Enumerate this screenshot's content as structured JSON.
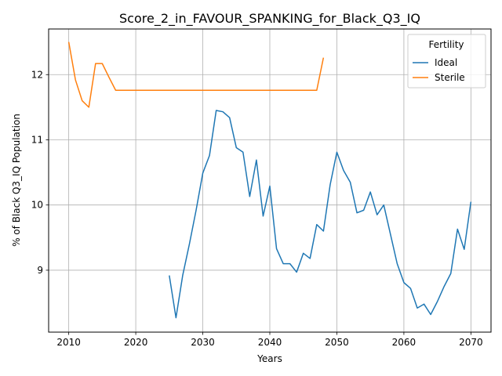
{
  "chart_data": {
    "type": "line",
    "title": "Score_2_in_FAVOUR_SPANKING_for_Black_Q3_IQ",
    "xlabel": "Years",
    "ylabel": "% of Black Q3_IQ Population",
    "xlim": [
      2007,
      2073
    ],
    "ylim": [
      8.05,
      12.7
    ],
    "xticks": [
      2010,
      2020,
      2030,
      2040,
      2050,
      2060,
      2070
    ],
    "yticks": [
      9,
      10,
      11,
      12
    ],
    "grid": true,
    "legend": {
      "title": "Fertility",
      "position": "top-right"
    },
    "series": [
      {
        "name": "Ideal",
        "color": "#1f77b4",
        "x": [
          2025,
          2026,
          2027,
          2028,
          2029,
          2030,
          2031,
          2032,
          2033,
          2034,
          2035,
          2036,
          2037,
          2038,
          2039,
          2040,
          2041,
          2042,
          2043,
          2044,
          2045,
          2046,
          2047,
          2048,
          2049,
          2050,
          2051,
          2052,
          2053,
          2054,
          2055,
          2056,
          2057,
          2058,
          2059,
          2060,
          2061,
          2062,
          2063,
          2064,
          2065,
          2066,
          2067,
          2068,
          2069,
          2070
        ],
        "y": [
          8.92,
          8.27,
          8.92,
          9.4,
          9.92,
          10.49,
          10.76,
          11.45,
          11.43,
          11.34,
          10.88,
          10.81,
          10.13,
          10.69,
          9.83,
          10.29,
          9.33,
          9.1,
          9.1,
          8.97,
          9.26,
          9.18,
          9.7,
          9.6,
          10.31,
          10.81,
          10.53,
          10.35,
          9.88,
          9.92,
          10.2,
          9.85,
          10.0,
          9.55,
          9.1,
          8.81,
          8.72,
          8.42,
          8.48,
          8.32,
          8.52,
          8.75,
          8.95,
          9.63,
          9.32,
          10.05
        ]
      },
      {
        "name": "Sterile",
        "color": "#ff7f0e",
        "x": [
          2010,
          2011,
          2012,
          2013,
          2014,
          2015,
          2016,
          2017,
          2018,
          2019,
          2020,
          2021,
          2022,
          2023,
          2024,
          2025,
          2026,
          2027,
          2028,
          2029,
          2030,
          2031,
          2032,
          2033,
          2034,
          2035,
          2036,
          2037,
          2038,
          2039,
          2040,
          2041,
          2042,
          2043,
          2044,
          2045,
          2046,
          2047,
          2048
        ],
        "y": [
          12.5,
          11.92,
          11.6,
          11.5,
          12.17,
          12.17,
          11.96,
          11.76,
          11.76,
          11.76,
          11.76,
          11.76,
          11.76,
          11.76,
          11.76,
          11.76,
          11.76,
          11.76,
          11.76,
          11.76,
          11.76,
          11.76,
          11.76,
          11.76,
          11.76,
          11.76,
          11.76,
          11.76,
          11.76,
          11.76,
          11.76,
          11.76,
          11.76,
          11.76,
          11.76,
          11.76,
          11.76,
          11.76,
          12.26
        ]
      }
    ]
  }
}
